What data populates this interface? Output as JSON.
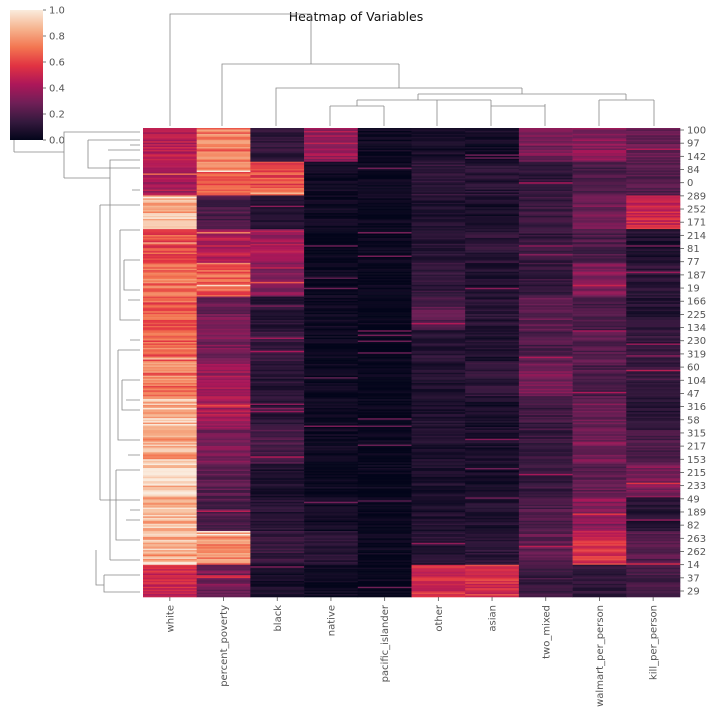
{
  "chart_data": {
    "type": "heatmap",
    "subtype": "clustermap",
    "title": "Heatmap of Variables",
    "columns": [
      "white",
      "percent_poverty",
      "black",
      "native",
      "pacific_islander",
      "other",
      "asian",
      "two_mixed",
      "walmart_per_person",
      "kill_per_person"
    ],
    "row_tick_labels": [
      "100",
      "97",
      "142",
      "84",
      "0",
      "289",
      "252",
      "171",
      "214",
      "81",
      "77",
      "187",
      "19",
      "166",
      "225",
      "134",
      "230",
      "319",
      "60",
      "104",
      "47",
      "316",
      "58",
      "315",
      "217",
      "153",
      "215",
      "233",
      "49",
      "189",
      "82",
      "263",
      "262",
      "14",
      "37",
      "29"
    ],
    "colorbar": {
      "vmin": 0.0,
      "vmax": 1.0,
      "ticks": [
        "0.0",
        "0.2",
        "0.4",
        "0.6",
        "0.8",
        "1.0"
      ],
      "colormap": "rocket",
      "colormap_stops": [
        "#03051a",
        "#35193e",
        "#701f57",
        "#ad1759",
        "#e13342",
        "#f37651",
        "#f6b48f",
        "#faebdd"
      ]
    },
    "row_count": 320,
    "column_profiles": [
      {
        "name": "white",
        "values_by_segment": [
          0.45,
          0.42,
          0.88,
          0.62,
          0.7,
          0.66,
          0.68,
          0.72,
          0.9,
          0.82,
          0.93,
          0.87,
          0.85,
          0.5
        ]
      },
      {
        "name": "percent_poverty",
        "values_by_segment": [
          0.72,
          0.7,
          0.2,
          0.45,
          0.66,
          0.28,
          0.3,
          0.4,
          0.42,
          0.3,
          0.22,
          0.2,
          0.75,
          0.3
        ]
      },
      {
        "name": "black",
        "values_by_segment": [
          0.12,
          0.62,
          0.08,
          0.4,
          0.32,
          0.1,
          0.14,
          0.1,
          0.12,
          0.18,
          0.08,
          0.1,
          0.14,
          0.06
        ]
      },
      {
        "name": "native",
        "values_by_segment": [
          0.4,
          0.04,
          0.03,
          0.02,
          0.02,
          0.03,
          0.02,
          0.02,
          0.02,
          0.03,
          0.02,
          0.03,
          0.1,
          0.02
        ]
      },
      {
        "name": "pacific_islander",
        "values_by_segment": [
          0.03,
          0.02,
          0.02,
          0.01,
          0.01,
          0.01,
          0.01,
          0.01,
          0.01,
          0.01,
          0.01,
          0.01,
          0.02,
          0.02
        ]
      },
      {
        "name": "other",
        "values_by_segment": [
          0.06,
          0.12,
          0.08,
          0.1,
          0.12,
          0.22,
          0.1,
          0.08,
          0.07,
          0.08,
          0.07,
          0.08,
          0.1,
          0.55
        ]
      },
      {
        "name": "asian",
        "values_by_segment": [
          0.05,
          0.1,
          0.06,
          0.12,
          0.08,
          0.1,
          0.08,
          0.12,
          0.06,
          0.07,
          0.06,
          0.08,
          0.12,
          0.55
        ]
      },
      {
        "name": "two_mixed",
        "values_by_segment": [
          0.3,
          0.12,
          0.15,
          0.14,
          0.14,
          0.25,
          0.2,
          0.3,
          0.16,
          0.14,
          0.14,
          0.2,
          0.25,
          0.15
        ]
      },
      {
        "name": "walmart_per_person",
        "values_by_segment": [
          0.35,
          0.2,
          0.28,
          0.2,
          0.32,
          0.18,
          0.22,
          0.2,
          0.28,
          0.3,
          0.24,
          0.35,
          0.55,
          0.12
        ]
      },
      {
        "name": "kill_per_person",
        "values_by_segment": [
          0.25,
          0.2,
          0.5,
          0.08,
          0.12,
          0.1,
          0.14,
          0.16,
          0.1,
          0.2,
          0.32,
          0.1,
          0.22,
          0.18
        ]
      }
    ],
    "xlabel": "",
    "ylabel": ""
  }
}
